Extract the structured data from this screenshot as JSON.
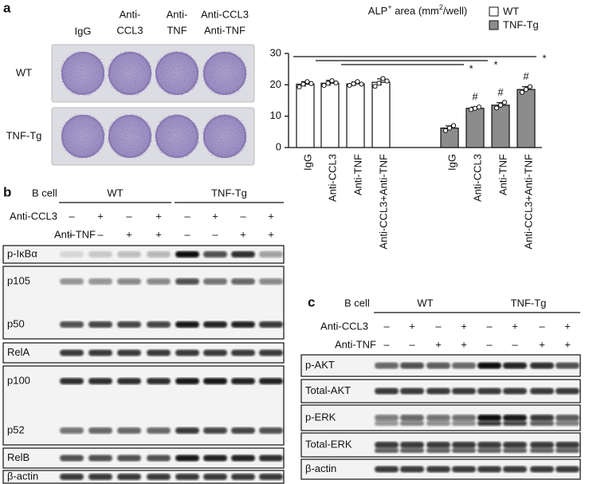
{
  "panel_a": {
    "label": "a",
    "columns": [
      [
        "IgG"
      ],
      [
        "Anti-",
        "CCL3"
      ],
      [
        "Anti-",
        "TNF"
      ],
      [
        "Anti-CCL3",
        "Anti-TNF"
      ]
    ],
    "rows": [
      "WT",
      "TNF-Tg"
    ]
  },
  "chart_data": {
    "type": "bar",
    "ylabel_parts": [
      "ALP",
      "+",
      " area (mm",
      "2",
      "/well)"
    ],
    "categories": [
      "IgG",
      "Anti-CCL3",
      "Anti-TNF",
      "Anti-CCL3+Anti-TNF",
      "IgG",
      "Anti-CCL3",
      "Anti-TNF",
      "Anti-CCL3+Anti-TNF"
    ],
    "series": [
      {
        "name": "WT",
        "color": "#ffffff",
        "values": [
          20.2,
          20.5,
          20.3,
          20.8,
          null,
          null,
          null,
          null
        ],
        "errors": [
          0.8,
          0.9,
          0.6,
          1.1,
          null,
          null,
          null,
          null
        ],
        "points": [
          [
            19.3,
            20.2,
            21,
            20.4
          ],
          [
            19.8,
            20.5,
            21.3,
            20.6
          ],
          [
            19.8,
            20.3,
            21,
            20.2
          ],
          [
            19.5,
            20.5,
            22,
            21.2
          ],
          null,
          null,
          null,
          null
        ]
      },
      {
        "name": "TNF-Tg",
        "color": "#8c8c8c",
        "values": [
          null,
          null,
          null,
          null,
          6.2,
          12.5,
          13.5,
          18.5
        ],
        "errors": [
          null,
          null,
          null,
          null,
          0.7,
          0.4,
          0.8,
          0.9
        ],
        "points": [
          null,
          null,
          null,
          null,
          [
            5.4,
            6.2,
            7
          ],
          [
            12.1,
            12.5,
            12.9
          ],
          [
            12.6,
            13.5,
            14.4
          ],
          [
            17.6,
            18.5,
            19.4
          ]
        ]
      }
    ],
    "ylim": [
      0,
      30
    ],
    "yticks": [
      0,
      10,
      20,
      30
    ],
    "stars": [
      "*",
      "*",
      "*"
    ],
    "marks": [
      null,
      null,
      null,
      null,
      null,
      "#",
      "#",
      "#"
    ]
  },
  "panel_b": {
    "label": "b",
    "header": "B cell",
    "groups": [
      "WT",
      "TNF-Tg"
    ],
    "treatments": [
      {
        "name": "Anti-CCL3",
        "signs": [
          "–",
          "+",
          "–",
          "+",
          "–",
          "+",
          "–",
          "+"
        ]
      },
      {
        "name": "Anti-TNF",
        "signs": [
          "–",
          "–",
          "+",
          "+",
          "–",
          "–",
          "+",
          "+"
        ]
      }
    ],
    "blots": [
      [
        "p-IκBα"
      ],
      [
        "p105",
        "p50"
      ],
      [
        "RelA"
      ],
      [
        "p100",
        "p52"
      ],
      [
        "RelB"
      ],
      [
        "β-actin"
      ]
    ]
  },
  "panel_c": {
    "label": "c",
    "header": "B cell",
    "groups": [
      "WT",
      "TNF-Tg"
    ],
    "treatments": [
      {
        "name": "Anti-CCL3",
        "signs": [
          "–",
          "+",
          "–",
          "+",
          "–",
          "+",
          "–",
          "+"
        ]
      },
      {
        "name": "Anti-TNF",
        "signs": [
          "–",
          "–",
          "+",
          "+",
          "–",
          "–",
          "+",
          "+"
        ]
      }
    ],
    "blots": [
      [
        "p-AKT"
      ],
      [
        "Total-AKT"
      ],
      [
        "p-ERK"
      ],
      [
        "Total-ERK"
      ],
      [
        "β-actin"
      ]
    ]
  }
}
